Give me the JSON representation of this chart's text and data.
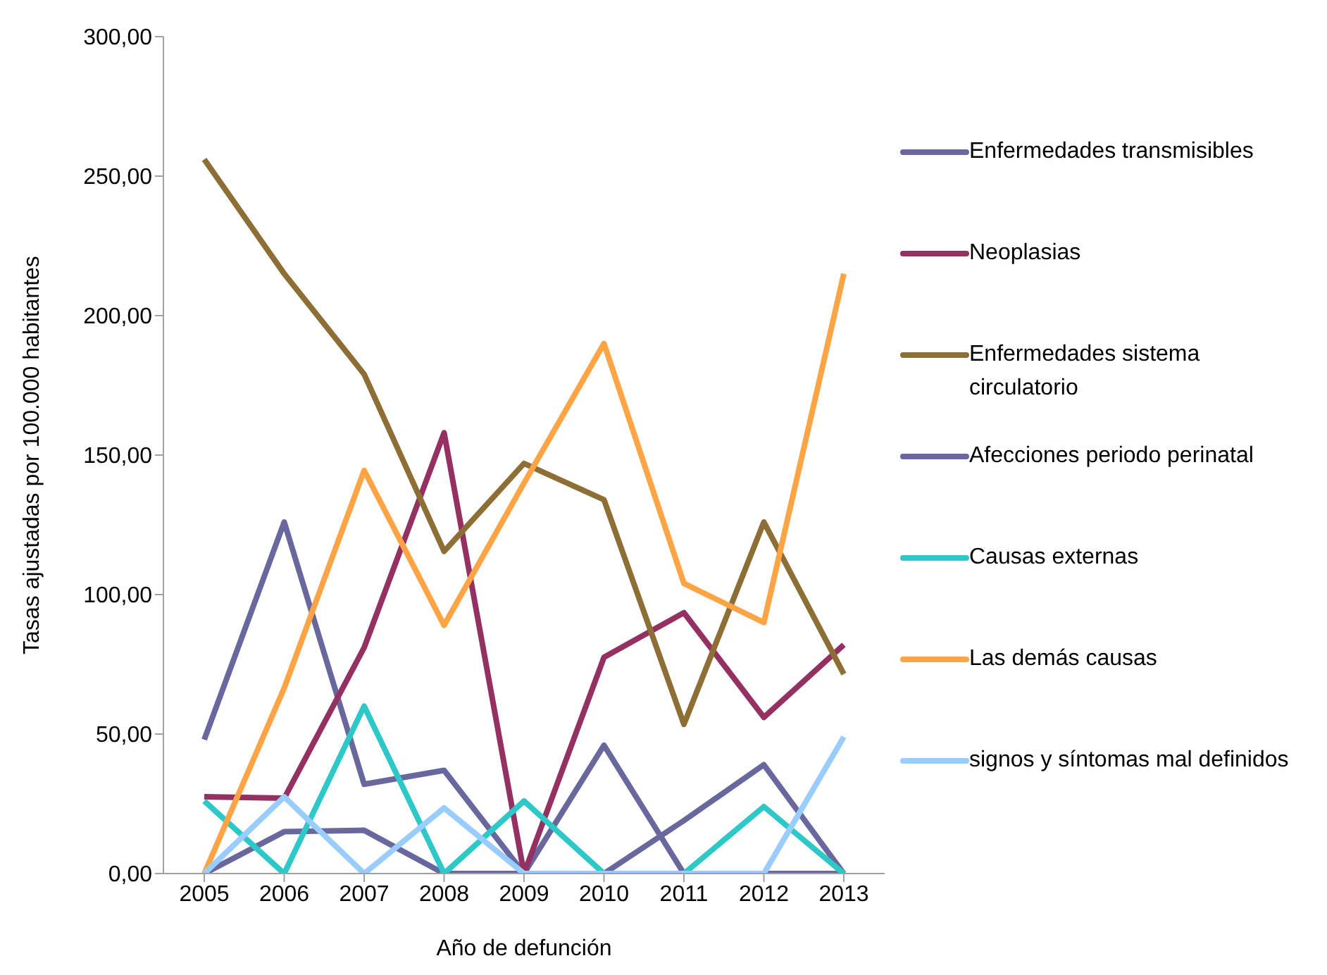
{
  "chart_data": {
    "type": "line",
    "xlabel": "Año de defunción",
    "ylabel": "Tasas ajustadas por 100.000 habitantes",
    "categories": [
      "2005",
      "2006",
      "2007",
      "2008",
      "2009",
      "2010",
      "2011",
      "2012",
      "2013"
    ],
    "series": [
      {
        "name": "Enfermedades transmisibles",
        "color": "#68689f",
        "values": [
          48,
          126,
          32,
          37,
          0,
          46,
          0,
          0,
          0
        ]
      },
      {
        "name": "Neoplasias",
        "color": "#953062",
        "values": [
          27.5,
          27,
          81,
          158,
          0,
          77.5,
          93.5,
          56,
          82
        ]
      },
      {
        "name": "Enfermedades sistema circulatorio",
        "color": "#8d6e35",
        "values": [
          256,
          215,
          179,
          115.5,
          147,
          134,
          53.5,
          126,
          71.5
        ]
      },
      {
        "name": "Afecciones periodo perinatal",
        "color": "#68689f",
        "values": [
          0,
          15,
          15.5,
          0,
          0,
          0,
          19,
          39,
          0
        ]
      },
      {
        "name": "Causas externas",
        "color": "#2ec8c8",
        "values": [
          26,
          0,
          60,
          0,
          26,
          0,
          0,
          24,
          0
        ]
      },
      {
        "name": "Las demás causas",
        "color": "#ffa445",
        "values": [
          0,
          66.5,
          144.5,
          89,
          140,
          190,
          104,
          90,
          215
        ]
      },
      {
        "name": "signos y síntomas mal definidos",
        "color": "#99ccff",
        "values": [
          0,
          27.5,
          0,
          23.5,
          0,
          0,
          0,
          0,
          49
        ]
      }
    ],
    "ylim": [
      0,
      300
    ],
    "yticks": [
      {
        "value": 0,
        "label": "0,00"
      },
      {
        "value": 50,
        "label": "50,00"
      },
      {
        "value": 100,
        "label": "100,00"
      },
      {
        "value": 150,
        "label": "150,00"
      },
      {
        "value": 200,
        "label": "200,00"
      },
      {
        "value": 250,
        "label": "250,00"
      },
      {
        "value": 300,
        "label": "300,00"
      }
    ],
    "legend": "right",
    "grid": false,
    "marker": "none",
    "line_style": "solid"
  }
}
